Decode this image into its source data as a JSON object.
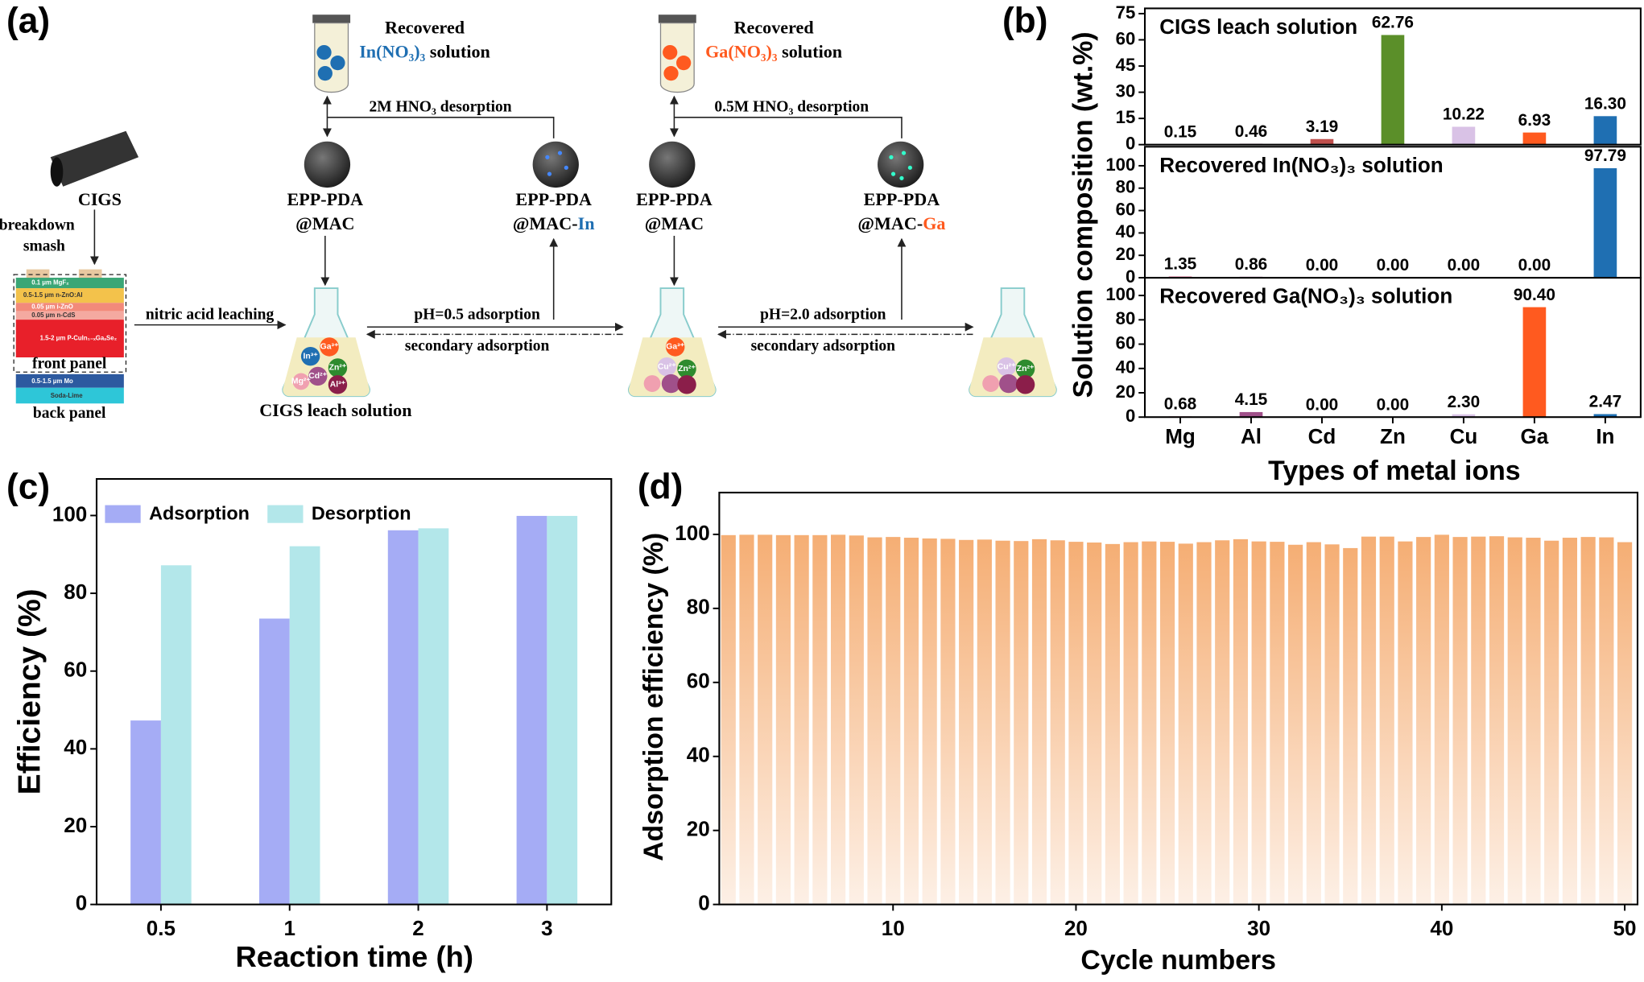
{
  "panel_labels": [
    "(a)",
    "(b)",
    "(c)",
    "(d)"
  ],
  "diagram": {
    "cigs": "CIGS",
    "breakdown": "breakdown",
    "smash": "smash",
    "layers": [
      "0.1 μm  MgF₂",
      "0.5-1.5 μm  n-ZnO:Al",
      "0.05 μm  i-ZnO",
      "0.05 μm  n-CdS",
      "1.5-2 μm  P-CuIn₁₋ₓGaₓSe₂",
      "0.5-1.5 μm  Mo",
      "Soda-Lime"
    ],
    "front_panel": "front panel",
    "back_panel": "back panel",
    "leaching": "nitric acid leaching",
    "leach_solution": "CIGS leach solution",
    "adsorption_1": "pH=0.5 adsorption",
    "secondary_1": "secondary adsorption",
    "adsorption_2": "pH=2.0 adsorption",
    "secondary_2": "secondary adsorption",
    "sorbent": "EPP-PDA",
    "mac": "@MAC",
    "mac_prefix": "@MAC-",
    "in": "In",
    "ga": "Ga",
    "recovered": "Recovered",
    "in_salt": "In(NO₃)₃",
    "ga_salt": "Ga(NO₃)₃",
    "solution": " solution",
    "desorption_1": "2M HNO₃ desorption",
    "desorption_2": "0.5M HNO₃ desorption",
    "ions": [
      "In³⁺",
      "Ga³⁺",
      "Zn²⁺",
      "Cd²⁺",
      "Al³⁺",
      "Mg²⁺",
      "Cu²⁺"
    ]
  },
  "chart_data": [
    {
      "type": "bar",
      "title": "CIGS leach solution",
      "y_label": "Solution composition (wt.%)",
      "values": [
        0.15,
        0.46,
        3.19,
        62.76,
        10.22,
        6.93,
        16.3
      ],
      "value_labels": [
        "0.15",
        "0.46",
        "3.19",
        "62.76",
        "10.22",
        "6.93",
        "16.30"
      ],
      "colors": [
        "#e8a0b8",
        "#a0508a",
        "#c0504d",
        "#5b8f29",
        "#d9c2e6",
        "#ff5a1f",
        "#1f6fb2"
      ],
      "ylim": [
        0,
        78
      ],
      "yticks": [
        0,
        15,
        30,
        45,
        60,
        75
      ]
    },
    {
      "type": "bar",
      "title": "Recovered In(NO₃)₃ solution",
      "values": [
        1.35,
        0.86,
        0,
        0,
        0,
        0,
        97.79
      ],
      "value_labels": [
        "1.35",
        "0.86",
        "0.00",
        "0.00",
        "0.00",
        "0.00",
        "97.79"
      ],
      "colors": [
        "#e8a0b8",
        "#a0508a",
        "#c0504d",
        "#5b8f29",
        "#d9c2e6",
        "#ff5a1f",
        "#1f6fb2"
      ],
      "ylim": [
        0,
        117
      ],
      "yticks": [
        0,
        20,
        40,
        60,
        80,
        100
      ]
    },
    {
      "type": "bar",
      "title": "Recovered Ga(NO₃)₃ solution",
      "x_label": "Types of metal ions",
      "categories": [
        "Mg",
        "Al",
        "Cd",
        "Zn",
        "Cu",
        "Ga",
        "In"
      ],
      "values": [
        0.68,
        4.15,
        0,
        0,
        2.3,
        90.4,
        2.47
      ],
      "value_labels": [
        "0.68",
        "4.15",
        "0.00",
        "0.00",
        "2.30",
        "90.40",
        "2.47"
      ],
      "colors": [
        "#e8a0b8",
        "#a0508a",
        "#c0504d",
        "#5b8f29",
        "#d9c2e6",
        "#ff5a1f",
        "#1f6fb2"
      ],
      "ylim": [
        0,
        114.6
      ],
      "yticks": [
        0,
        20,
        40,
        60,
        80,
        100
      ]
    },
    {
      "type": "grouped_bar",
      "x_label": "Reaction time (h)",
      "y_label": "Efficiency (%)",
      "categories": [
        "0.5",
        "1",
        "2",
        "3"
      ],
      "series": [
        {
          "name": "Adsorption",
          "color": "#a5acf5",
          "values": [
            47.3,
            73.5,
            96.2,
            99.9
          ]
        },
        {
          "name": "Desorption",
          "color": "#b3e7ea",
          "values": [
            87.2,
            92.1,
            96.7,
            99.9
          ]
        }
      ],
      "ylim": [
        0,
        109.4
      ],
      "yticks": [
        0,
        20,
        40,
        60,
        80,
        100
      ],
      "legend": "upper left"
    },
    {
      "type": "bar",
      "x_label": "Cycle  numbers",
      "y_label": "Adsorption efficiency (%)",
      "color": "#f5ae74",
      "x": [
        1,
        2,
        3,
        4,
        5,
        6,
        7,
        8,
        9,
        10,
        11,
        12,
        13,
        14,
        15,
        16,
        17,
        18,
        19,
        20,
        21,
        22,
        23,
        24,
        25,
        26,
        27,
        28,
        29,
        30,
        31,
        32,
        33,
        34,
        35,
        36,
        37,
        38,
        39,
        40,
        41,
        42,
        43,
        44,
        45,
        46,
        47,
        48,
        49,
        50
      ],
      "values": [
        99.8,
        99.9,
        99.9,
        99.8,
        99.8,
        99.8,
        99.9,
        99.7,
        99.2,
        99.3,
        99.1,
        98.9,
        98.8,
        98.5,
        98.6,
        98.3,
        98.2,
        98.7,
        98.4,
        98.0,
        97.8,
        97.4,
        97.9,
        98.1,
        98.0,
        97.5,
        97.9,
        98.4,
        98.7,
        98.1,
        98.0,
        97.2,
        97.9,
        97.3,
        96.3,
        99.4,
        99.4,
        98.1,
        99.3,
        99.9,
        99.3,
        99.4,
        99.5,
        99.2,
        99.1,
        98.3,
        99.1,
        99.3,
        99.2,
        97.9
      ],
      "xlim": [
        0.5,
        50.7
      ],
      "xticks": [
        10,
        20,
        30,
        40,
        50
      ],
      "ylim": [
        0,
        111.3
      ],
      "yticks": [
        0,
        20,
        40,
        60,
        80,
        100
      ]
    }
  ]
}
